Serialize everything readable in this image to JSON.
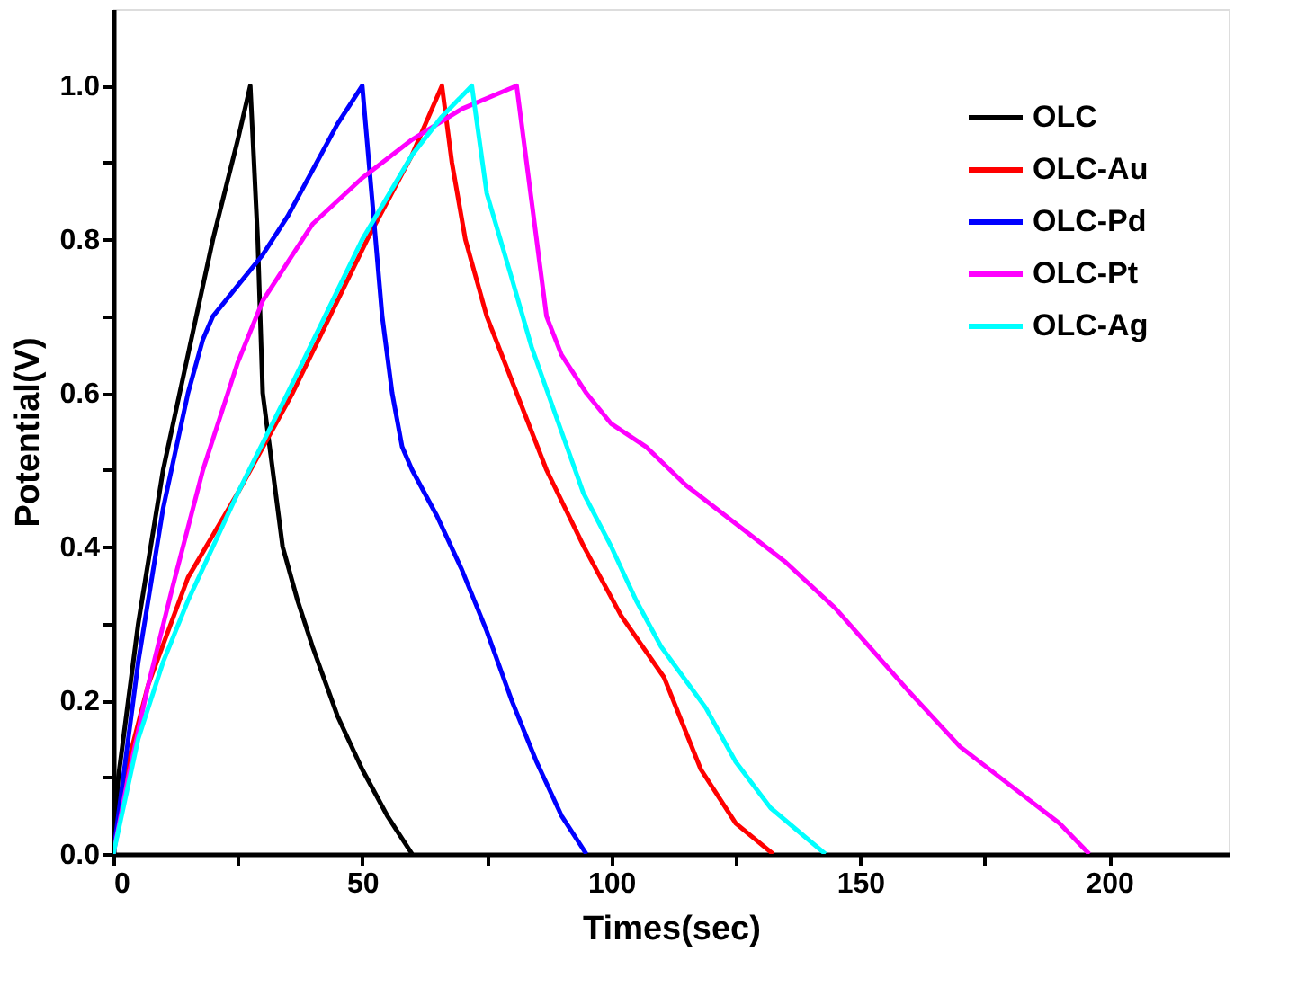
{
  "chart_data": {
    "type": "line",
    "xlabel": "Times(sec)",
    "ylabel": "Potential(V)",
    "xlim": [
      0,
      224
    ],
    "ylim": [
      0,
      1.1
    ],
    "xticks": [
      0,
      {
        "value": 25,
        "label": null
      },
      50,
      {
        "value": 75,
        "label": null
      },
      100,
      {
        "value": 125,
        "label": null
      },
      150,
      {
        "value": 175,
        "label": null
      },
      200
    ],
    "yticks": [
      {
        "value": 0,
        "label": "0.0"
      },
      {
        "value": 0.1,
        "label": null
      },
      0.2,
      {
        "value": 0.3,
        "label": null
      },
      0.4,
      {
        "value": 0.5,
        "label": null
      },
      0.6,
      {
        "value": 0.7,
        "label": null
      },
      0.8,
      {
        "value": 0.9,
        "label": null
      },
      {
        "value": 1.0,
        "label": "1.0"
      }
    ],
    "grid": false,
    "legend": "top right",
    "marker": "none",
    "line_style": "solid",
    "series": [
      {
        "name": "OLC",
        "color": "#000000",
        "x": [
          0,
          1,
          3,
          5,
          10,
          15,
          20,
          25,
          27.5,
          29,
          30,
          32,
          34,
          37,
          40,
          45,
          50,
          55,
          60
        ],
        "values": [
          0,
          0.1,
          0.2,
          0.3,
          0.5,
          0.65,
          0.8,
          0.93,
          1.0,
          0.8,
          0.6,
          0.5,
          0.4,
          0.33,
          0.27,
          0.18,
          0.11,
          0.05,
          0
        ]
      },
      {
        "name": "OLC-Au",
        "color": "#ff0000",
        "x": [
          0,
          3,
          7,
          15,
          25,
          36,
          51,
          60,
          66,
          68,
          70.7,
          75,
          81,
          87,
          94.5,
          102,
          110.6,
          118,
          125,
          132.5
        ],
        "values": [
          0,
          0.12,
          0.22,
          0.36,
          0.47,
          0.6,
          0.8,
          0.91,
          1.0,
          0.9,
          0.8,
          0.7,
          0.6,
          0.5,
          0.4,
          0.31,
          0.23,
          0.11,
          0.04,
          0
        ]
      },
      {
        "name": "OLC-Pd",
        "color": "#0000ff",
        "x": [
          0,
          2,
          5,
          10,
          15,
          18,
          20,
          25,
          30,
          35,
          40,
          45,
          50,
          52,
          54,
          56,
          58,
          60,
          65,
          70,
          75,
          80,
          85,
          90,
          95
        ],
        "values": [
          0,
          0.1,
          0.25,
          0.45,
          0.6,
          0.67,
          0.7,
          0.74,
          0.78,
          0.83,
          0.89,
          0.95,
          1.0,
          0.85,
          0.7,
          0.6,
          0.53,
          0.5,
          0.44,
          0.37,
          0.29,
          0.2,
          0.12,
          0.05,
          0
        ]
      },
      {
        "name": "OLC-Pt",
        "color": "#ff00ff",
        "x": [
          0,
          3,
          7,
          12,
          18,
          25,
          30,
          40,
          50,
          60,
          70,
          81,
          82,
          84,
          87,
          90,
          95,
          100,
          107,
          115,
          125,
          135,
          145,
          160,
          170,
          182,
          190,
          196
        ],
        "values": [
          0,
          0.1,
          0.22,
          0.35,
          0.5,
          0.64,
          0.72,
          0.82,
          0.88,
          0.93,
          0.97,
          1.0,
          0.95,
          0.85,
          0.7,
          0.65,
          0.6,
          0.56,
          0.53,
          0.48,
          0.43,
          0.38,
          0.32,
          0.21,
          0.14,
          0.08,
          0.04,
          0
        ]
      },
      {
        "name": "OLC-Ag",
        "color": "#00ffff",
        "x": [
          0,
          5,
          10,
          15,
          25,
          35,
          50,
          60,
          66,
          72,
          75,
          80,
          84,
          90,
          94.4,
          100,
          105,
          110,
          119,
          125,
          132,
          143
        ],
        "values": [
          0,
          0.15,
          0.25,
          0.33,
          0.47,
          0.6,
          0.8,
          0.91,
          0.96,
          1.0,
          0.86,
          0.75,
          0.66,
          0.55,
          0.47,
          0.4,
          0.33,
          0.27,
          0.19,
          0.12,
          0.06,
          0
        ]
      }
    ]
  }
}
